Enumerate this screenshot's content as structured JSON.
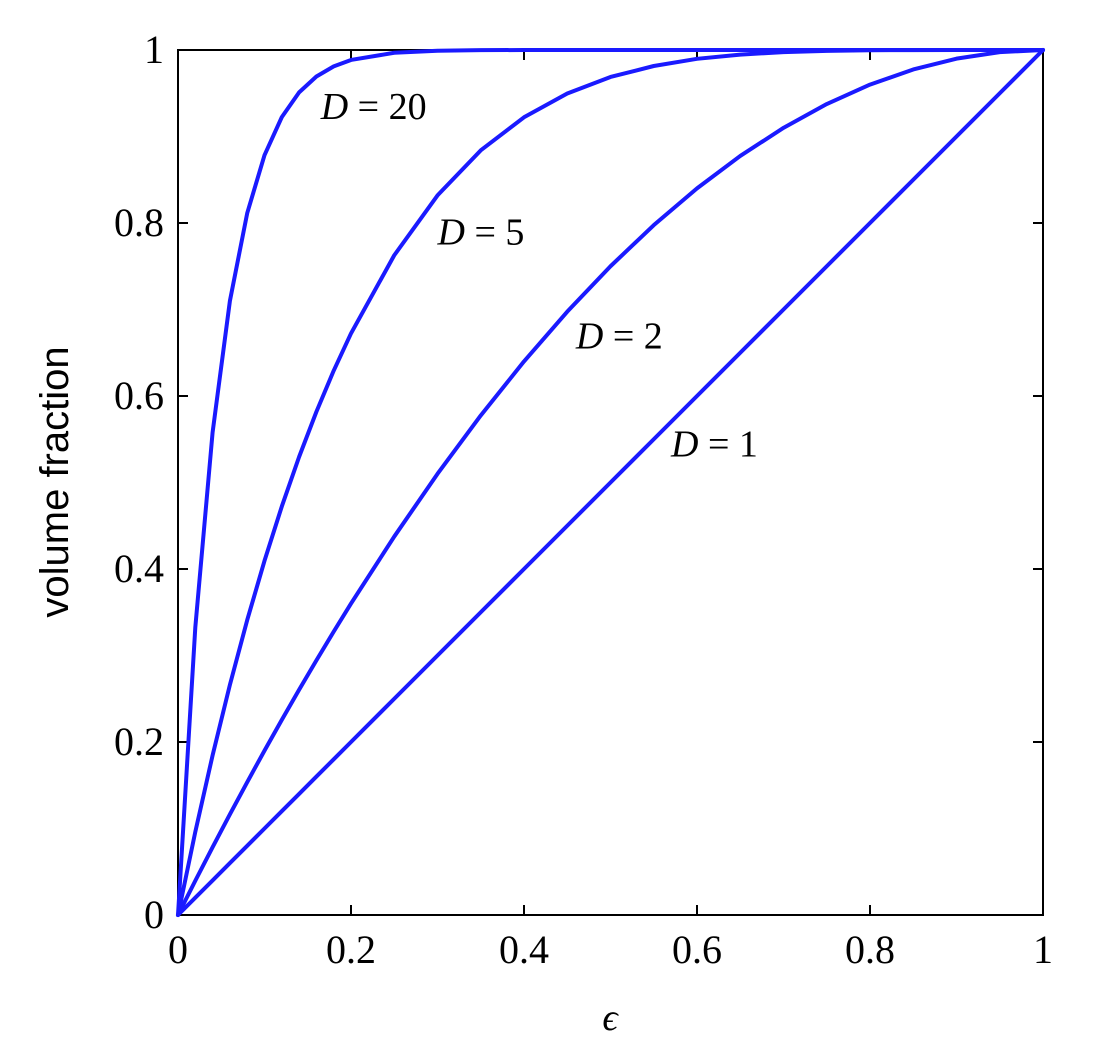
{
  "chart_data": {
    "type": "line",
    "title": "",
    "xlabel": "ϵ",
    "ylabel": "volume fraction",
    "xlim": [
      0,
      1
    ],
    "ylim": [
      0,
      1
    ],
    "grid": false,
    "xticks": [
      {
        "value": 0,
        "label": "0"
      },
      {
        "value": 0.2,
        "label": "0.2"
      },
      {
        "value": 0.4,
        "label": "0.4"
      },
      {
        "value": 0.6,
        "label": "0.6"
      },
      {
        "value": 0.8,
        "label": "0.8"
      },
      {
        "value": 1,
        "label": "1"
      }
    ],
    "yticks": [
      {
        "value": 0,
        "label": "0"
      },
      {
        "value": 0.2,
        "label": "0.2"
      },
      {
        "value": 0.4,
        "label": "0.4"
      },
      {
        "value": 0.6,
        "label": "0.6"
      },
      {
        "value": 0.8,
        "label": "0.8"
      },
      {
        "value": 1,
        "label": "1"
      }
    ],
    "line_color": "#1a1aff",
    "x": [
      0,
      0.02,
      0.04,
      0.06,
      0.08,
      0.1,
      0.12,
      0.14,
      0.16,
      0.18,
      0.2,
      0.25,
      0.3,
      0.35,
      0.4,
      0.45,
      0.5,
      0.55,
      0.6,
      0.65,
      0.7,
      0.75,
      0.8,
      0.85,
      0.9,
      0.95,
      1
    ],
    "series": [
      {
        "label": "D = 1",
        "label_var": "D",
        "label_rest": " = 1",
        "label_at": [
          0.57,
          0.545
        ],
        "values": [
          0,
          0.02,
          0.04,
          0.06,
          0.08,
          0.1,
          0.12,
          0.14,
          0.16,
          0.18,
          0.2,
          0.25,
          0.3,
          0.35,
          0.4,
          0.45,
          0.5,
          0.55,
          0.6,
          0.65,
          0.7,
          0.75,
          0.8,
          0.85,
          0.9,
          0.95,
          1
        ]
      },
      {
        "label": "D = 2",
        "label_var": "D",
        "label_rest": " = 2",
        "label_at": [
          0.46,
          0.67
        ],
        "values": [
          0,
          0.0396,
          0.0784,
          0.1164,
          0.1536,
          0.19,
          0.2256,
          0.2604,
          0.2944,
          0.3276,
          0.36,
          0.4375,
          0.51,
          0.5775,
          0.64,
          0.6975,
          0.75,
          0.7975,
          0.84,
          0.8775,
          0.91,
          0.9375,
          0.96,
          0.9775,
          0.99,
          0.9975,
          1
        ]
      },
      {
        "label": "D = 5",
        "label_var": "D",
        "label_rest": " = 5",
        "label_at": [
          0.3,
          0.79
        ],
        "values": [
          0,
          0.0961,
          0.1846,
          0.2661,
          0.3409,
          0.4095,
          0.4723,
          0.5296,
          0.5818,
          0.6293,
          0.6723,
          0.7627,
          0.8319,
          0.884,
          0.9222,
          0.9497,
          0.9688,
          0.9815,
          0.9898,
          0.9947,
          0.9976,
          0.999,
          0.9997,
          0.9999,
          1,
          1,
          1
        ]
      },
      {
        "label": "D = 20",
        "label_var": "D",
        "label_rest": " = 20",
        "label_at": [
          0.165,
          0.935
        ],
        "values": [
          0,
          0.3324,
          0.558,
          0.7099,
          0.8113,
          0.8784,
          0.9224,
          0.951,
          0.9694,
          0.9811,
          0.9885,
          0.9968,
          0.9992,
          0.9998,
          1,
          1,
          1,
          1,
          1,
          1,
          1,
          1,
          1,
          1,
          1,
          1,
          1
        ]
      }
    ]
  }
}
